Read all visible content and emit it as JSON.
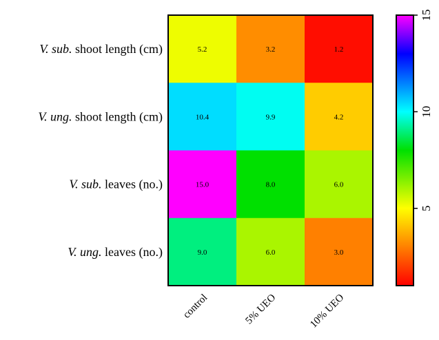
{
  "chart_data": {
    "type": "heatmap",
    "columns": [
      "control",
      "5% UEO",
      "10% UEO"
    ],
    "rows": [
      {
        "species": "V. sub.",
        "measure": "shoot length (cm)",
        "values": [
          5.2,
          3.2,
          1.2
        ],
        "labels": [
          "5.2",
          "3.2",
          "1.2"
        ]
      },
      {
        "species": "V. ung.",
        "measure": "shoot length (cm)",
        "values": [
          10.4,
          9.9,
          4.2
        ],
        "labels": [
          "10.4",
          "9.9",
          "4.2"
        ]
      },
      {
        "species": "V. sub.",
        "measure": "leaves (no.)",
        "values": [
          15.0,
          8.0,
          6.0
        ],
        "labels": [
          "15.0",
          "8.0",
          "6.0"
        ]
      },
      {
        "species": "V. ung.",
        "measure": "leaves (no.)",
        "values": [
          9.0,
          6.0,
          3.0
        ],
        "labels": [
          "9.0",
          "6.0",
          "3.0"
        ]
      }
    ],
    "colorbar": {
      "range": [
        1,
        15
      ],
      "ticks": [
        "5",
        "10",
        "15"
      ],
      "tick_values": [
        5,
        10,
        15
      ],
      "colormap": "rainbow: red (low) - orange - yellow - green - cyan - blue - magenta (high)"
    }
  }
}
